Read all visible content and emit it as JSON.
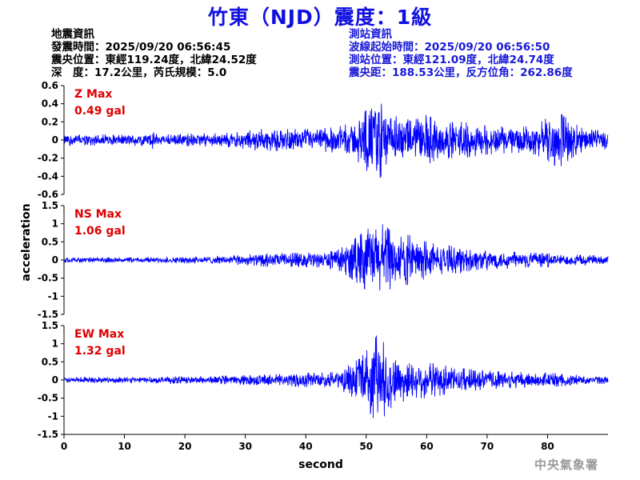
{
  "title": "竹東（NJD）震度：1級",
  "earthquake_info": {
    "heading": "地震資訊",
    "origin_time": "發震時間：2025/09/20 06:56:45",
    "epicenter": "震央位置：東經119.24度，北緯24.52度",
    "depth_magnitude": "深　度：17.2公里，芮氏規模：5.0"
  },
  "station_info": {
    "heading": "測站資訊",
    "wave_start": "波線起始時間：2025/09/20 06:56:50",
    "location": "測站位置：東經121.09度，北緯24.74度",
    "distance": "震央距：188.53公里，反方位角：262.86度"
  },
  "agency": "中央氣象署",
  "colors": {
    "title": "#1010e0",
    "trace": "#0000ff",
    "max_label": "#e00000",
    "station_info": "#1818d8"
  },
  "chart_data": {
    "type": "line",
    "xlabel": "second",
    "ylabel": "acceleration",
    "xlim": [
      0,
      90
    ],
    "xticks": [
      0,
      10,
      20,
      30,
      40,
      50,
      60,
      70,
      80
    ],
    "panels": [
      {
        "name": "Z",
        "max_label": "Z Max",
        "max_value": "0.49 gal",
        "ylim": [
          -0.6,
          0.6
        ],
        "yticks": [
          -0.6,
          -0.4,
          -0.2,
          0,
          0.2,
          0.4,
          0.6
        ],
        "ytick_labels": [
          "-0.6",
          "-0.4",
          "-0.2",
          "0",
          "0.2",
          "0.4",
          "0.6"
        ],
        "envelope": [
          [
            0,
            0.06
          ],
          [
            8,
            0.06
          ],
          [
            14,
            0.07
          ],
          [
            14.6,
            0.1
          ],
          [
            15.5,
            0.06
          ],
          [
            28,
            0.08
          ],
          [
            32,
            0.12
          ],
          [
            40,
            0.12
          ],
          [
            45,
            0.14
          ],
          [
            48,
            0.2
          ],
          [
            50,
            0.33
          ],
          [
            51.5,
            0.49
          ],
          [
            52.5,
            0.4
          ],
          [
            54,
            0.28
          ],
          [
            56,
            0.24
          ],
          [
            58,
            0.22
          ],
          [
            60,
            0.28
          ],
          [
            62,
            0.2
          ],
          [
            66,
            0.2
          ],
          [
            70,
            0.16
          ],
          [
            75,
            0.14
          ],
          [
            78,
            0.16
          ],
          [
            80,
            0.25
          ],
          [
            82,
            0.3
          ],
          [
            84,
            0.2
          ],
          [
            86,
            0.12
          ],
          [
            90,
            0.1
          ]
        ]
      },
      {
        "name": "NS",
        "max_label": "NS Max",
        "max_value": "1.06 gal",
        "ylim": [
          -1.5,
          1.5
        ],
        "yticks": [
          -1.5,
          -1,
          -0.5,
          0,
          0.5,
          1,
          1.5
        ],
        "ytick_labels": [
          "-1.5",
          "-1",
          "-0.5",
          "0",
          "0.5",
          "1",
          "1.5"
        ],
        "envelope": [
          [
            0,
            0.07
          ],
          [
            10,
            0.07
          ],
          [
            20,
            0.09
          ],
          [
            27,
            0.12
          ],
          [
            33,
            0.18
          ],
          [
            40,
            0.2
          ],
          [
            45,
            0.25
          ],
          [
            47,
            0.45
          ],
          [
            49,
            0.7
          ],
          [
            51,
            0.95
          ],
          [
            52,
            1.06
          ],
          [
            53.5,
            0.9
          ],
          [
            55,
            0.6
          ],
          [
            57,
            0.7
          ],
          [
            58.5,
            0.6
          ],
          [
            60,
            0.5
          ],
          [
            63,
            0.4
          ],
          [
            67,
            0.35
          ],
          [
            70,
            0.28
          ],
          [
            75,
            0.22
          ],
          [
            80,
            0.18
          ],
          [
            85,
            0.14
          ],
          [
            90,
            0.12
          ]
        ]
      },
      {
        "name": "EW",
        "max_label": "EW Max",
        "max_value": "1.32 gal",
        "ylim": [
          -1.5,
          1.5
        ],
        "yticks": [
          -1.5,
          -1,
          -0.5,
          0,
          0.5,
          1,
          1.5
        ],
        "ytick_labels": [
          "-1.5",
          "-1",
          "-0.5",
          "0",
          "0.5",
          "1",
          "1.5"
        ],
        "envelope": [
          [
            0,
            0.08
          ],
          [
            10,
            0.08
          ],
          [
            20,
            0.1
          ],
          [
            28,
            0.12
          ],
          [
            33,
            0.15
          ],
          [
            38,
            0.18
          ],
          [
            45,
            0.22
          ],
          [
            47,
            0.4
          ],
          [
            49,
            0.6
          ],
          [
            51,
            1.0
          ],
          [
            52,
            1.32
          ],
          [
            53,
            1.0
          ],
          [
            54.5,
            0.7
          ],
          [
            56,
            0.6
          ],
          [
            58,
            0.55
          ],
          [
            60,
            0.5
          ],
          [
            63,
            0.4
          ],
          [
            67,
            0.3
          ],
          [
            70,
            0.26
          ],
          [
            75,
            0.22
          ],
          [
            80,
            0.2
          ],
          [
            85,
            0.14
          ],
          [
            90,
            0.1
          ]
        ]
      }
    ]
  }
}
